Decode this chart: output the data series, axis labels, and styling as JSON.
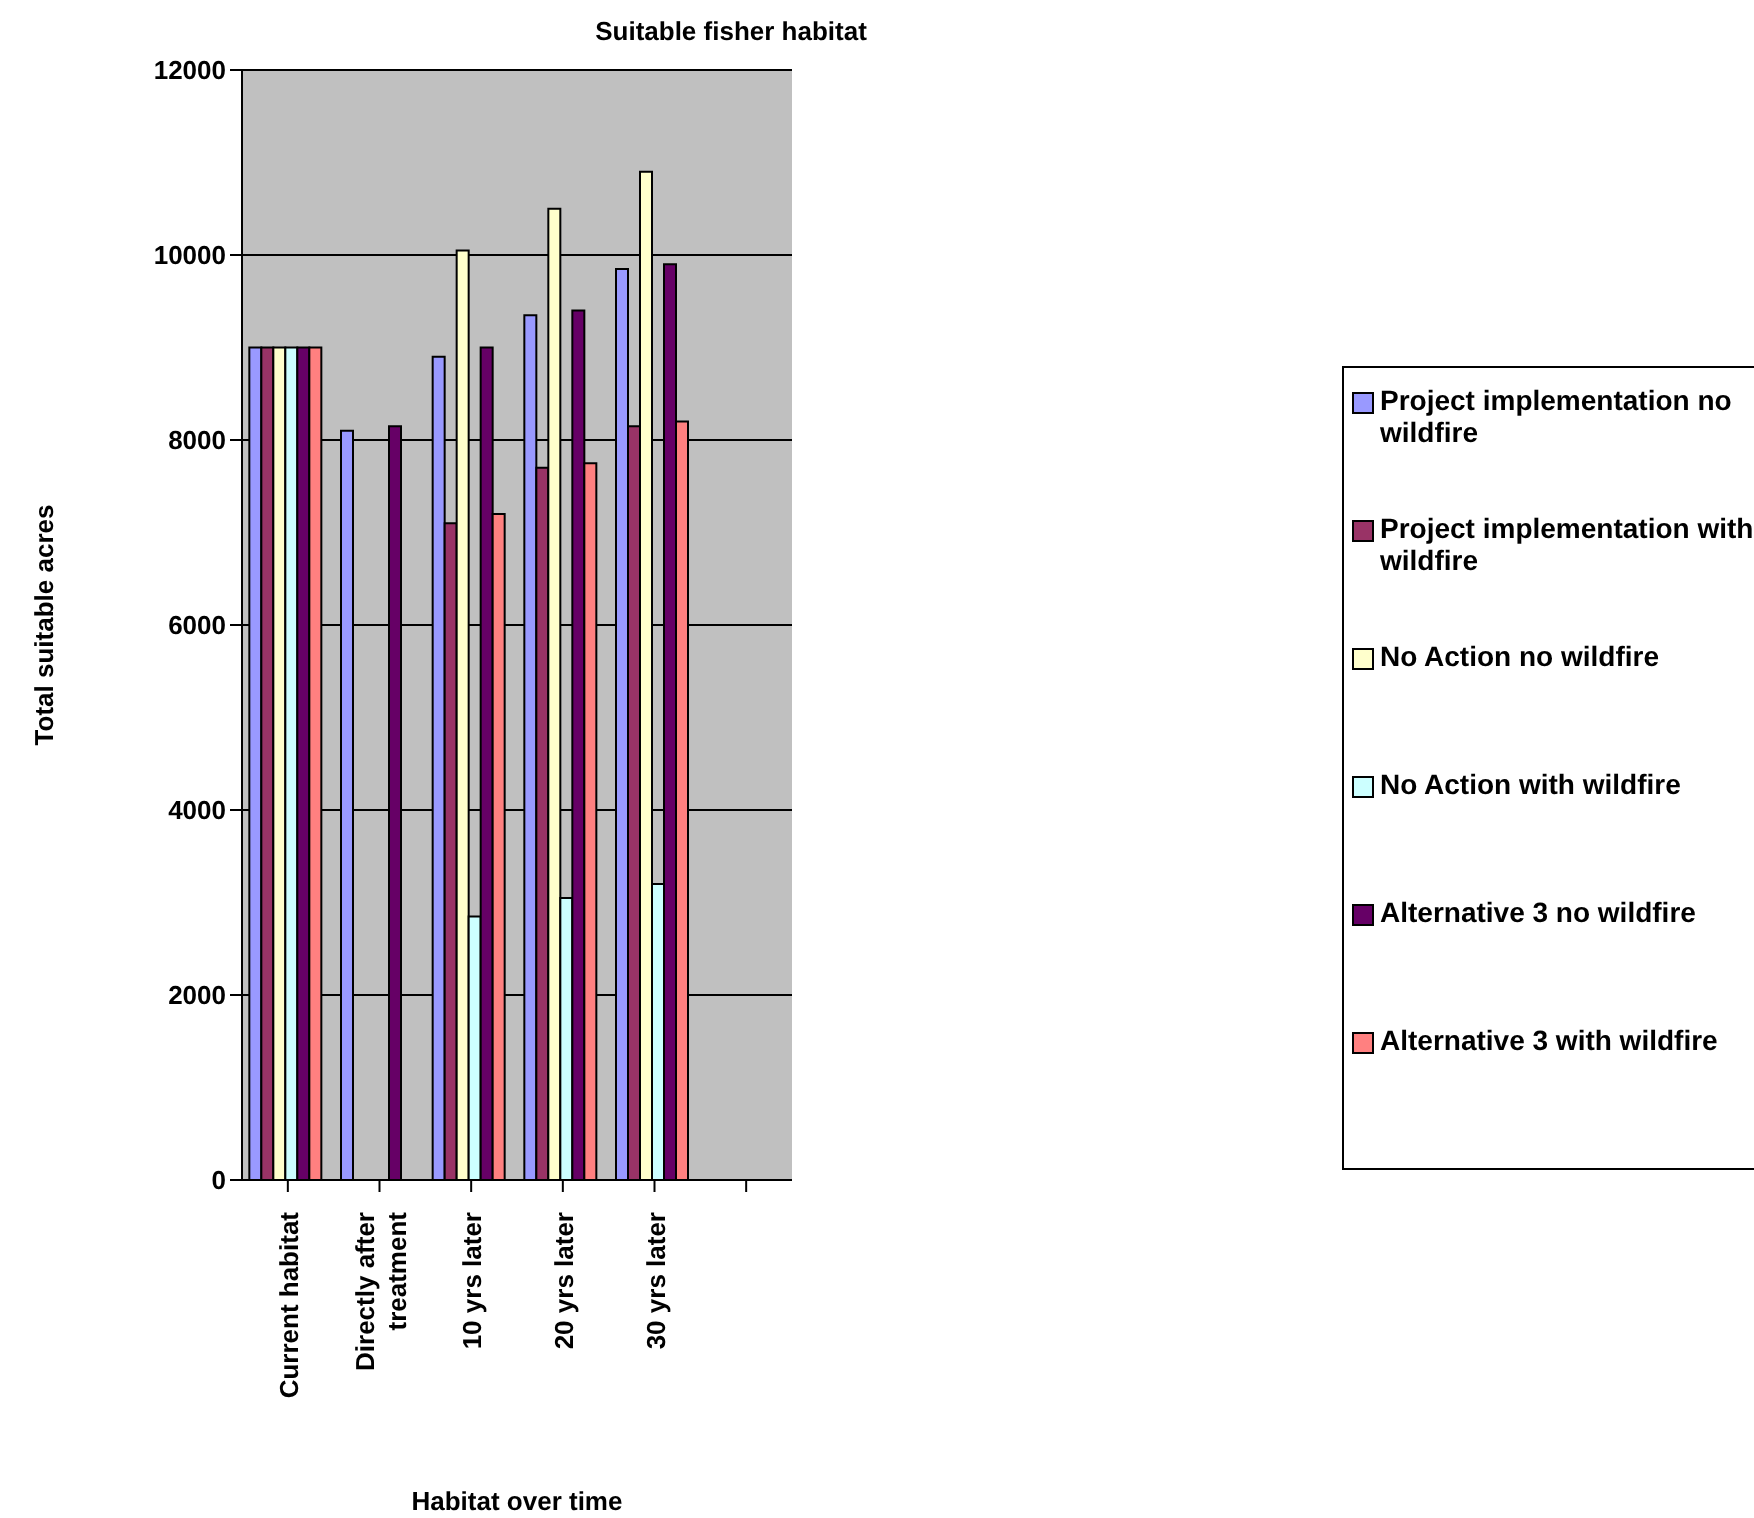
{
  "chart_data": {
    "type": "bar",
    "title": "Suitable fisher habitat",
    "xlabel": "Habitat over time",
    "ylabel": "Total suitable acres",
    "categories": [
      "Current habitat",
      "Directly after treatment",
      "10 yrs later",
      "20 yrs later",
      "30 yrs later",
      null
    ],
    "series": [
      {
        "name": "Project implementation no wildfire",
        "color": "#9999ff",
        "values": [
          9000,
          8100,
          8900,
          9350,
          9850,
          null
        ]
      },
      {
        "name": "Project implementation with wildfire",
        "color": "#993366",
        "values": [
          9000,
          null,
          7100,
          7700,
          8150,
          null
        ]
      },
      {
        "name": "No Action no wildfire",
        "color": "#ffffcc",
        "values": [
          9000,
          null,
          10050,
          10500,
          10900,
          null
        ]
      },
      {
        "name": "No Action with wildfire",
        "color": "#ccffff",
        "values": [
          9000,
          null,
          2850,
          3050,
          3200,
          null
        ]
      },
      {
        "name": "Alternative 3 no wildfire",
        "color": "#660066",
        "values": [
          9000,
          8150,
          9000,
          9400,
          9900,
          null
        ]
      },
      {
        "name": "Alternative 3 with wildfire",
        "color": "#ff8080",
        "values": [
          9000,
          null,
          7200,
          7750,
          8200,
          null
        ]
      }
    ],
    "ylim": [
      0,
      12000
    ],
    "yticks": [
      0,
      2000,
      4000,
      6000,
      8000,
      10000,
      12000
    ],
    "grid": "y",
    "legend": "right"
  }
}
